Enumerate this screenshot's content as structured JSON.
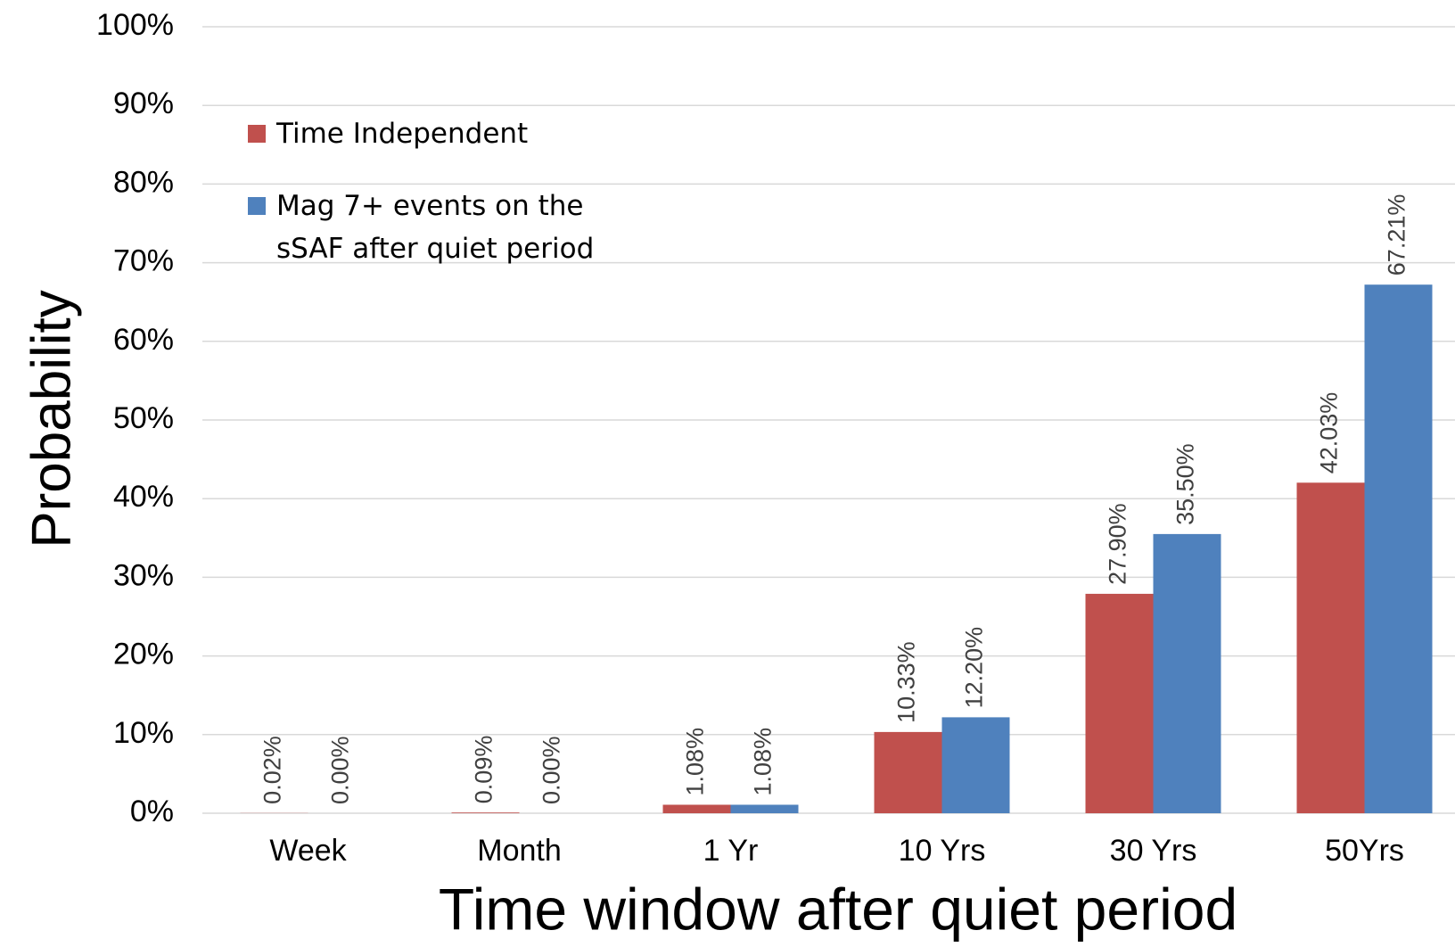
{
  "chart_data": {
    "type": "bar",
    "xlabel": "Time window after quiet period",
    "ylabel": "Probability",
    "categories": [
      "Week",
      "Month",
      "1 Yr",
      "10 Yrs",
      "30 Yrs",
      "50Yrs"
    ],
    "series": [
      {
        "name": "Time Independent",
        "color": "#c0504d",
        "values": [
          0.02,
          0.09,
          1.08,
          10.33,
          27.9,
          42.03
        ],
        "value_labels": [
          "0.02%",
          "0.09%",
          "1.08%",
          "10.33%",
          "27.90%",
          "42.03%"
        ]
      },
      {
        "name": "Mag 7+ events on the sSAF after quiet period",
        "color": "#4f81bd",
        "values": [
          0.0,
          0.0,
          1.08,
          12.2,
          35.5,
          67.21
        ],
        "value_labels": [
          "0.00%",
          "0.00%",
          "1.08%",
          "12.20%",
          "35.50%",
          "67.21%"
        ]
      }
    ],
    "ylim": [
      0,
      100
    ],
    "yticks": [
      {
        "value": 0,
        "label": "0%"
      },
      {
        "value": 10,
        "label": "10%"
      },
      {
        "value": 20,
        "label": "20%"
      },
      {
        "value": 30,
        "label": "30%"
      },
      {
        "value": 40,
        "label": "40%"
      },
      {
        "value": 50,
        "label": "50%"
      },
      {
        "value": 60,
        "label": "60%"
      },
      {
        "value": 70,
        "label": "70%"
      },
      {
        "value": 80,
        "label": "80%"
      },
      {
        "value": 90,
        "label": "90%"
      },
      {
        "value": 100,
        "label": "100%"
      }
    ],
    "grid": true,
    "legend": "upper left"
  }
}
